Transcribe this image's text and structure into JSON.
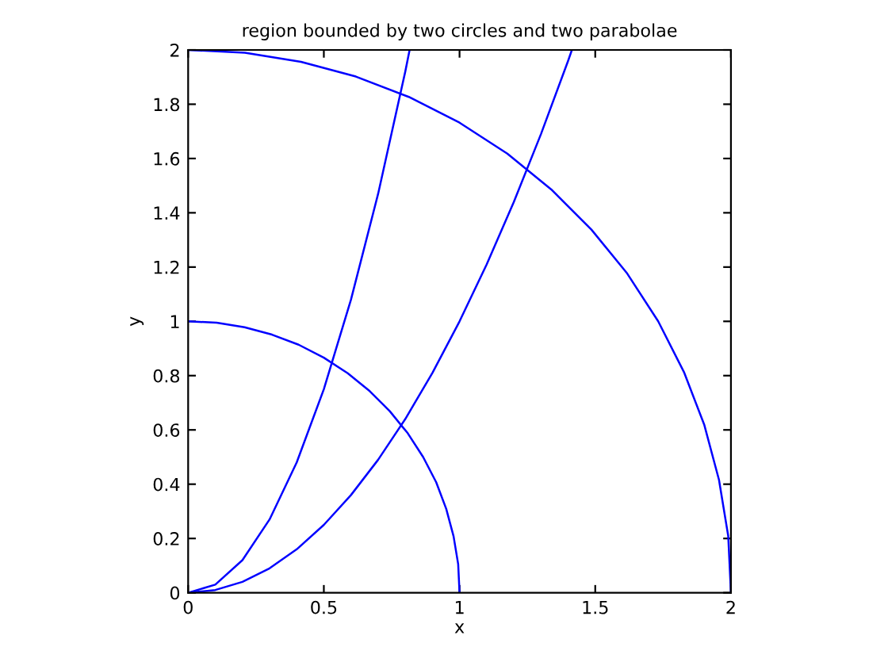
{
  "chart_data": {
    "type": "line",
    "title": "region bounded by two circles and two parabolae",
    "xlabel": "x",
    "ylabel": "y",
    "xlim": [
      0,
      2
    ],
    "ylim": [
      0,
      2
    ],
    "xticks": [
      0,
      0.5,
      1,
      1.5,
      2
    ],
    "yticks": [
      0,
      0.2,
      0.4,
      0.6,
      0.8,
      1,
      1.2,
      1.4,
      1.6,
      1.8,
      2
    ],
    "grid": false,
    "marker": "none",
    "line_style": "solid",
    "series": [
      {
        "color": "#0000ff",
        "x": [
          1,
          0.995,
          0.978,
          0.951,
          0.914,
          0.866,
          0.809,
          0.743,
          0.669,
          0.588,
          0.5,
          0.407,
          0.309,
          0.208,
          0.105,
          0
        ],
        "values": [
          0,
          0.105,
          0.208,
          0.309,
          0.407,
          0.5,
          0.588,
          0.669,
          0.743,
          0.809,
          0.866,
          0.914,
          0.951,
          0.978,
          0.995,
          1
        ]
      },
      {
        "color": "#0000ff",
        "x": [
          2,
          1.99,
          1.956,
          1.902,
          1.827,
          1.732,
          1.618,
          1.486,
          1.338,
          1.176,
          1,
          0.813,
          0.618,
          0.416,
          0.209,
          0
        ],
        "values": [
          0,
          0.209,
          0.416,
          0.618,
          0.813,
          1,
          1.176,
          1.338,
          1.486,
          1.618,
          1.732,
          1.827,
          1.902,
          1.956,
          1.99,
          2
        ]
      },
      {
        "color": "#0000ff",
        "x": [
          0,
          0.1,
          0.2,
          0.3,
          0.4,
          0.5,
          0.6,
          0.7,
          0.8,
          0.816
        ],
        "values": [
          0,
          0.03,
          0.12,
          0.27,
          0.48,
          0.75,
          1.08,
          1.47,
          1.92,
          2
        ]
      },
      {
        "color": "#0000ff",
        "x": [
          0,
          0.1,
          0.2,
          0.3,
          0.4,
          0.5,
          0.6,
          0.7,
          0.8,
          0.9,
          1,
          1.1,
          1.2,
          1.3,
          1.4,
          1.414
        ],
        "values": [
          0,
          0.01,
          0.04,
          0.09,
          0.16,
          0.25,
          0.36,
          0.49,
          0.64,
          0.81,
          1,
          1.21,
          1.44,
          1.69,
          1.96,
          2
        ]
      }
    ]
  }
}
